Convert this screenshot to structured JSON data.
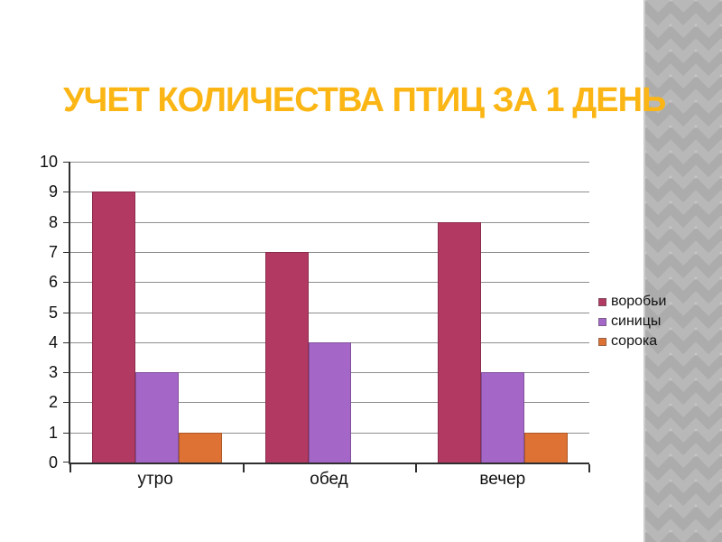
{
  "slide": {
    "title": "УЧЕТ КОЛИЧЕСТВА ПТИЦ ЗА 1 ДЕНЬ"
  },
  "colors": {
    "title": "#fbb615",
    "axis": "#2f2f2f",
    "gridline": "#8e8e8e",
    "text": "#111111",
    "slide_background": "#ffffff",
    "pattern_base": "#acacac",
    "pattern_diamond": "#b8b8b8",
    "pattern_edge": "#cccccc"
  },
  "chart_data": {
    "type": "bar",
    "title": "",
    "xlabel": "",
    "ylabel": "",
    "categories": [
      "утро",
      "обед",
      "вечер"
    ],
    "series": [
      {
        "name": "воробьи",
        "color": "#b23a62",
        "values": [
          9,
          7,
          8
        ]
      },
      {
        "name": "синицы",
        "color": "#a567c7",
        "values": [
          3,
          4,
          3
        ]
      },
      {
        "name": "сорока",
        "color": "#de7134",
        "values": [
          1,
          0,
          1
        ]
      }
    ],
    "ylim": [
      0,
      10
    ],
    "yticks": [
      0,
      1,
      2,
      3,
      4,
      5,
      6,
      7,
      8,
      9,
      10
    ],
    "grid": true,
    "legend_position": "right",
    "legend_labels": [
      "воробьи",
      "синицы",
      "сорока"
    ]
  }
}
